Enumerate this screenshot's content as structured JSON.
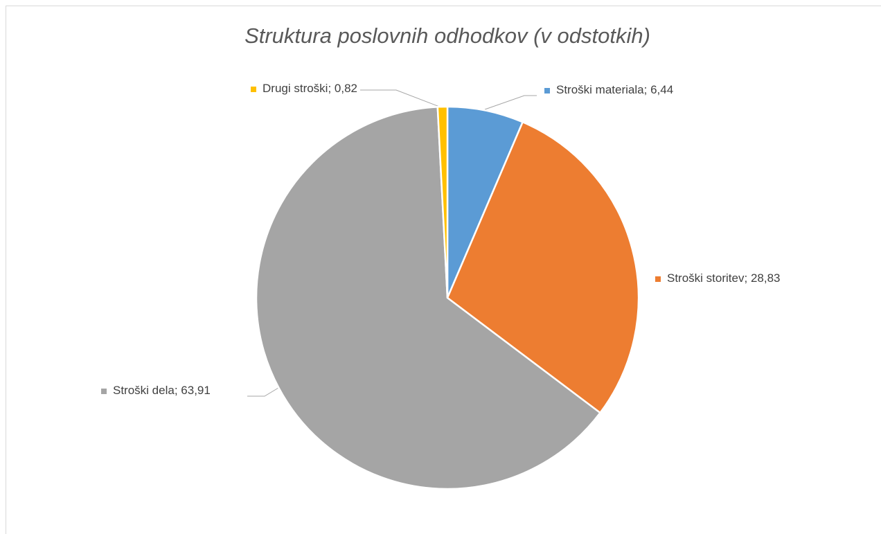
{
  "chart_data": {
    "type": "pie",
    "title": "Struktura poslovnih odhodkov (v odstotkih)",
    "categories": [
      "Stroški materiala",
      "Stroški storitev",
      "Stroški dela",
      "Drugi stroški"
    ],
    "values": [
      6.44,
      28.83,
      63.91,
      0.82
    ],
    "value_labels": [
      "6,44",
      "28,83",
      "63,91",
      "0,82"
    ],
    "label_separator": "; ",
    "colors": [
      "#5b9bd5",
      "#ed7d31",
      "#a5a5a5",
      "#ffc000"
    ]
  }
}
